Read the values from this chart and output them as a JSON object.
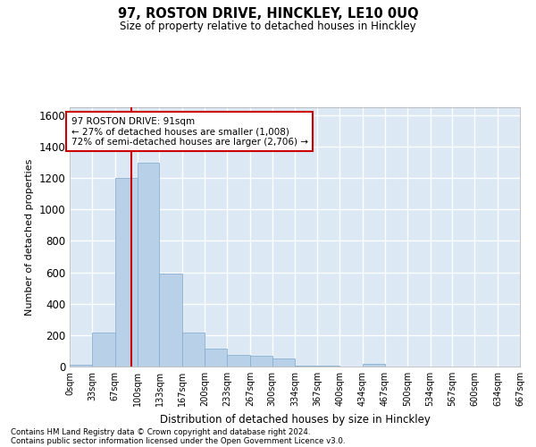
{
  "title": "97, ROSTON DRIVE, HINCKLEY, LE10 0UQ",
  "subtitle": "Size of property relative to detached houses in Hinckley",
  "xlabel": "Distribution of detached houses by size in Hinckley",
  "ylabel": "Number of detached properties",
  "bar_color": "#b8d0e8",
  "bar_edge_color": "#8ab0d0",
  "bg_color": "#dce8f4",
  "grid_color": "#ffffff",
  "annotation_box_color": "#cc0000",
  "property_line_color": "#cc0000",
  "bin_edges": [
    0,
    33,
    67,
    100,
    133,
    167,
    200,
    233,
    267,
    300,
    334,
    367,
    400,
    434,
    467,
    500,
    534,
    567,
    600,
    634,
    667
  ],
  "bin_labels": [
    "0sqm",
    "33sqm",
    "67sqm",
    "100sqm",
    "133sqm",
    "167sqm",
    "200sqm",
    "233sqm",
    "267sqm",
    "300sqm",
    "334sqm",
    "367sqm",
    "400sqm",
    "434sqm",
    "467sqm",
    "500sqm",
    "534sqm",
    "567sqm",
    "600sqm",
    "634sqm",
    "667sqm"
  ],
  "counts": [
    10,
    215,
    1200,
    1300,
    590,
    215,
    115,
    75,
    70,
    50,
    5,
    5,
    0,
    15,
    0,
    0,
    0,
    0,
    0,
    0
  ],
  "property_size": 91,
  "property_label": "97 ROSTON DRIVE: 91sqm",
  "annotation_line1": "← 27% of detached houses are smaller (1,008)",
  "annotation_line2": "72% of semi-detached houses are larger (2,706) →",
  "ylim": [
    0,
    1650
  ],
  "yticks": [
    0,
    200,
    400,
    600,
    800,
    1000,
    1200,
    1400,
    1600
  ],
  "footer1": "Contains HM Land Registry data © Crown copyright and database right 2024.",
  "footer2": "Contains public sector information licensed under the Open Government Licence v3.0."
}
